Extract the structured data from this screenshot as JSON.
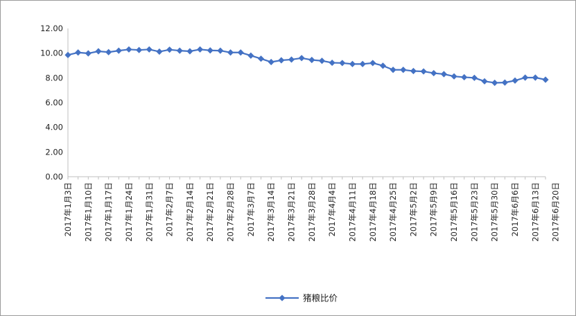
{
  "chart_data": {
    "type": "line",
    "title": "",
    "xlabel": "",
    "ylabel": "",
    "ylim": [
      0,
      12
    ],
    "yticks": [
      0,
      2,
      4,
      6,
      8,
      10,
      12
    ],
    "ytick_labels": [
      "0.00",
      "2.00",
      "4.00",
      "6.00",
      "8.00",
      "10.00",
      "12.00"
    ],
    "grid": false,
    "legend_position": "bottom",
    "x_tick_labels": [
      "2017年1月3日",
      "2017年1月10日",
      "2017年1月17日",
      "2017年1月24日",
      "2017年1月31日",
      "2017年2月7日",
      "2017年2月14日",
      "2017年2月21日",
      "2017年2月28日",
      "2017年3月7日",
      "2017年3月14日",
      "2017年3月21日",
      "2017年3月28日",
      "2017年4月4日",
      "2017年4月11日",
      "2017年4月18日",
      "2017年4月25日",
      "2017年5月2日",
      "2017年5月9日",
      "2017年5月16日",
      "2017年5月23日",
      "2017年5月30日",
      "2017年6月6日",
      "2017年6月13日",
      "2017年6月20日"
    ],
    "series": [
      {
        "name": "猪粮比价",
        "color": "#4472C4",
        "values": [
          9.85,
          10.05,
          9.98,
          10.15,
          10.08,
          10.2,
          10.3,
          10.25,
          10.3,
          10.12,
          10.28,
          10.2,
          10.15,
          10.3,
          10.22,
          10.2,
          10.05,
          10.05,
          9.8,
          9.55,
          9.28,
          9.42,
          9.48,
          9.6,
          9.45,
          9.38,
          9.22,
          9.2,
          9.12,
          9.12,
          9.2,
          8.98,
          8.65,
          8.65,
          8.55,
          8.52,
          8.38,
          8.3,
          8.12,
          8.05,
          8.0,
          7.72,
          7.6,
          7.62,
          7.78,
          8.02,
          8.02,
          7.85
        ]
      }
    ]
  }
}
